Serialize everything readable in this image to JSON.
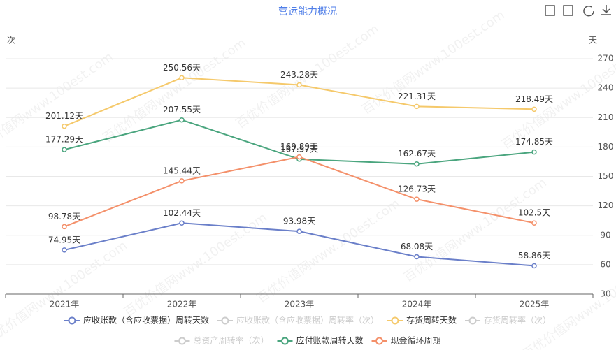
{
  "chart_data": {
    "type": "line",
    "title": "营运能力概况",
    "y_label": "次",
    "y2_label": "天",
    "watermark": "百优价值网www.100est.com",
    "categories": [
      "2021年",
      "2022年",
      "2023年",
      "2024年",
      "2025年"
    ],
    "y2lim": [
      30,
      270
    ],
    "y2ticks": [
      30,
      60,
      90,
      120,
      150,
      180,
      210,
      240,
      270
    ],
    "grid": true,
    "series": [
      {
        "name": "应收账款（含应收票据）周转天数",
        "color": "#6a7fc9",
        "axis": "y2",
        "visible": true,
        "values": [
          74.95,
          102.44,
          93.98,
          68.08,
          58.86
        ],
        "value_labels": [
          "74.95天",
          "102.44天",
          "93.98天",
          "68.08天",
          "58.86天"
        ]
      },
      {
        "name": "应收账款（含应收票据）周转率（次）",
        "color": "#cccccc",
        "visible": false,
        "values": [
          null,
          null,
          null,
          null,
          null
        ]
      },
      {
        "name": "存货周转天数",
        "color": "#f5c96b",
        "axis": "y2",
        "visible": true,
        "values": [
          201.12,
          250.56,
          243.28,
          221.31,
          218.49
        ],
        "value_labels": [
          "201.12天",
          "250.56天",
          "243.28天",
          "221.31天",
          "218.49天"
        ]
      },
      {
        "name": "存货周转率（次）",
        "color": "#cccccc",
        "visible": false,
        "values": [
          null,
          null,
          null,
          null,
          null
        ]
      },
      {
        "name": "总资产周转率（次）",
        "color": "#cccccc",
        "visible": false,
        "values": [
          null,
          null,
          null,
          null,
          null
        ]
      },
      {
        "name": "应付账款周转天数",
        "color": "#4aa57e",
        "axis": "y2",
        "visible": true,
        "values": [
          177.29,
          207.55,
          167.57,
          162.67,
          174.85
        ],
        "value_labels": [
          "177.29天",
          "207.55天",
          "167.57天",
          "162.67天",
          "174.85天"
        ]
      },
      {
        "name": "现金循环周期",
        "color": "#f4906a",
        "axis": "y2",
        "visible": true,
        "values": [
          98.78,
          145.44,
          169.89,
          126.73,
          102.5
        ],
        "value_labels": [
          "98.78天",
          "145.44天",
          "169.89天",
          "126.73天",
          "102.5天"
        ]
      }
    ]
  }
}
